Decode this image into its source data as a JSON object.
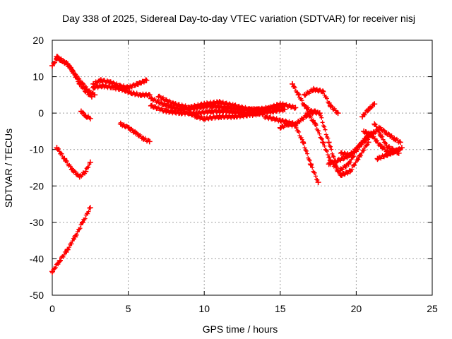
{
  "chart_data": {
    "type": "scatter",
    "title": "Day 338 of 2025, Sidereal Day-to-day VTEC variation (SDTVAR) for receiver nisj",
    "xlabel": "GPS time / hours",
    "ylabel": "SDTVAR / TECUs",
    "xlim": [
      0,
      25
    ],
    "ylim": [
      -50,
      20
    ],
    "xticks": [
      "0",
      "5",
      "10",
      "15",
      "20",
      "25"
    ],
    "yticks": [
      "-50",
      "-40",
      "-30",
      "-20",
      "-10",
      "0",
      "10",
      "20"
    ],
    "grid": true,
    "marker_color": "#ff0000",
    "series": [
      {
        "name": "s1",
        "x": [
          0.0,
          0.3,
          0.6,
          1.0,
          1.4,
          1.8,
          2.2,
          2.6
        ],
        "y": [
          13,
          15,
          14.5,
          13.5,
          11,
          8,
          6,
          4.5
        ]
      },
      {
        "name": "s2",
        "x": [
          0.3,
          0.8,
          1.2,
          1.6,
          2.0,
          2.4,
          2.8
        ],
        "y": [
          15.5,
          14,
          12.5,
          10,
          8,
          6,
          5
        ]
      },
      {
        "name": "s3",
        "x": [
          0.0,
          0.5,
          1.0,
          1.5,
          2.0,
          2.5
        ],
        "y": [
          -43.5,
          -40.5,
          -37.5,
          -34,
          -30,
          -26
        ]
      },
      {
        "name": "s4",
        "x": [
          0.3,
          0.8,
          1.3,
          1.8,
          2.2,
          2.5
        ],
        "y": [
          -9.5,
          -12.5,
          -15.5,
          -17.5,
          -16,
          -13.5
        ]
      },
      {
        "name": "s5",
        "x": [
          1.9,
          2.2,
          2.5
        ],
        "y": [
          0.5,
          -0.8,
          -1.5
        ]
      },
      {
        "name": "s6",
        "x": [
          2.7,
          3.2,
          3.8,
          4.4,
          5.0,
          5.6,
          6.2
        ],
        "y": [
          8,
          9,
          8.5,
          7.5,
          7,
          8,
          9
        ]
      },
      {
        "name": "s7",
        "x": [
          2.7,
          3.3,
          4.0,
          4.6,
          5.2,
          5.8,
          6.4
        ],
        "y": [
          7,
          7.5,
          7,
          6.5,
          5.5,
          5,
          5
        ]
      },
      {
        "name": "s8",
        "x": [
          4.5,
          5.0,
          5.5,
          6.0,
          6.4
        ],
        "y": [
          -3,
          -4,
          -5.5,
          -7,
          -7.8
        ]
      },
      {
        "name": "s9",
        "x": [
          6.5,
          7.5,
          8.5,
          9.5,
          10.5,
          11.5,
          12.5,
          13.5,
          14.5,
          15.3
        ],
        "y": [
          4,
          2,
          1,
          1.5,
          2,
          1.5,
          1,
          1,
          1.5,
          2
        ]
      },
      {
        "name": "s10",
        "x": [
          6.5,
          7.5,
          8.5,
          9.5,
          10.5,
          11.5,
          12.5,
          13.5,
          14.5,
          15.3
        ],
        "y": [
          2,
          0.5,
          0,
          0,
          0.5,
          0.5,
          0,
          0,
          0.5,
          1
        ]
      },
      {
        "name": "s11",
        "x": [
          7.0,
          8.0,
          9.0,
          10.0,
          11.0,
          12.0,
          13.0,
          14.0,
          15.0,
          16.0
        ],
        "y": [
          4.5,
          2.5,
          1.5,
          2.5,
          3,
          2,
          1,
          1,
          2.5,
          1.5
        ]
      },
      {
        "name": "s12",
        "x": [
          9.0,
          9.5,
          10.0,
          11.0,
          12.0,
          13.0,
          14.0
        ],
        "y": [
          0,
          -1,
          -1.5,
          -1,
          -1,
          -0.5,
          0
        ]
      },
      {
        "name": "s13",
        "x": [
          14.0,
          15.0,
          16.0,
          16.8,
          17.3
        ],
        "y": [
          -1,
          -2,
          -3,
          -0.5,
          0.5
        ]
      },
      {
        "name": "s14",
        "x": [
          15.0,
          15.5,
          16.0,
          16.5,
          17.0,
          17.5
        ],
        "y": [
          -4,
          -3,
          -3.5,
          -8,
          -14,
          -19
        ]
      },
      {
        "name": "s15",
        "x": [
          15.8,
          16.2,
          16.6,
          17.0,
          17.6,
          18.2,
          18.8,
          19.5,
          20.2,
          21.0
        ],
        "y": [
          8,
          5,
          2,
          0.5,
          0,
          -8,
          -16,
          -14,
          -9,
          -6
        ]
      },
      {
        "name": "s16",
        "x": [
          16.6,
          17.2,
          17.8,
          18.3,
          18.8
        ],
        "y": [
          5,
          6.5,
          6,
          2,
          0
        ]
      },
      {
        "name": "s17",
        "x": [
          16.8,
          17.3,
          17.8,
          18.3,
          19.0,
          19.6,
          20.2,
          20.8
        ],
        "y": [
          0,
          -3,
          -8,
          -13,
          -17,
          -16,
          -12,
          -8
        ]
      },
      {
        "name": "s18",
        "x": [
          18.2,
          18.8,
          19.4,
          20.0,
          20.6
        ],
        "y": [
          -14,
          -13,
          -12,
          -10,
          -7
        ]
      },
      {
        "name": "s19",
        "x": [
          19.0,
          19.6,
          20.2,
          20.8,
          21.3
        ],
        "y": [
          -11,
          -11.5,
          -9,
          -6,
          -5
        ]
      },
      {
        "name": "s20",
        "x": [
          20.4,
          20.8,
          21.2
        ],
        "y": [
          -1,
          1,
          2.5
        ]
      },
      {
        "name": "s21",
        "x": [
          21.2,
          21.6,
          22.0,
          22.4,
          22.8
        ],
        "y": [
          -3,
          -6,
          -9,
          -10,
          -11
        ]
      },
      {
        "name": "s22",
        "x": [
          21.5,
          22.0,
          22.5,
          22.9
        ],
        "y": [
          -4,
          -5.5,
          -7,
          -8
        ]
      },
      {
        "name": "s23",
        "x": [
          21.4,
          22.0,
          22.6,
          23.0
        ],
        "y": [
          -12.5,
          -11.5,
          -10.5,
          -9.5
        ]
      },
      {
        "name": "s24",
        "x": [
          20.5,
          21.0,
          21.6,
          22.2,
          22.8
        ],
        "y": [
          -5,
          -6,
          -9,
          -11,
          -10
        ]
      }
    ]
  }
}
